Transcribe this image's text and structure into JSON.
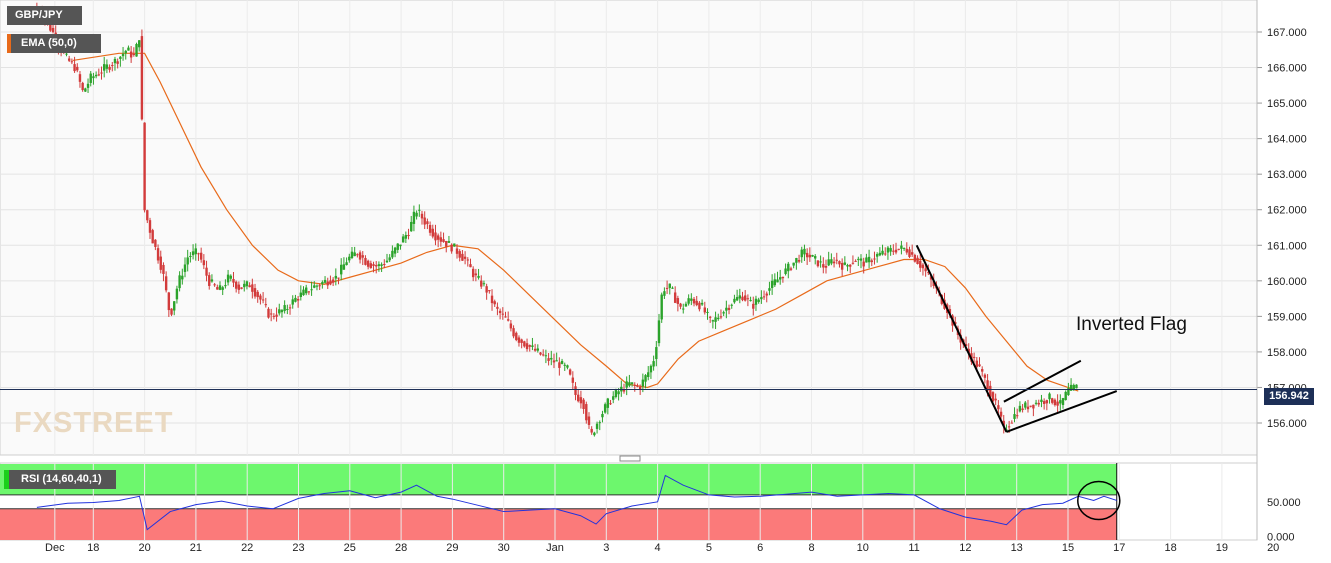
{
  "chart_data": [
    {
      "type": "candlestick",
      "symbol": "GBP/JPY",
      "indicator_label": "EMA (50,0)",
      "annotation": "Inverted Flag",
      "last_price": "156.942",
      "watermark": "FXSTREET",
      "y_ticks": [
        "156.000",
        "157.000",
        "158.000",
        "159.000",
        "160.000",
        "161.000",
        "162.000",
        "163.000",
        "164.000",
        "165.000",
        "166.000",
        "167.000"
      ],
      "ylim": [
        155.1,
        167.9
      ],
      "x_ticks": [
        {
          "label": "Dec",
          "x": 0.25
        },
        {
          "label": "18",
          "x": 1.0
        },
        {
          "label": "20",
          "x": 2.0
        },
        {
          "label": "21",
          "x": 3.0
        },
        {
          "label": "22",
          "x": 4.0
        },
        {
          "label": "23",
          "x": 5.0
        },
        {
          "label": "25",
          "x": 6.0
        },
        {
          "label": "28",
          "x": 7.0
        },
        {
          "label": "29",
          "x": 8.0
        },
        {
          "label": "30",
          "x": 9.0
        },
        {
          "label": "Jan",
          "x": 10.0
        },
        {
          "label": "3",
          "x": 11.0
        },
        {
          "label": "4",
          "x": 12.0
        },
        {
          "label": "5",
          "x": 13.0
        },
        {
          "label": "6",
          "x": 14.0
        },
        {
          "label": "8",
          "x": 15.0
        },
        {
          "label": "10",
          "x": 16.0
        },
        {
          "label": "11",
          "x": 17.0
        },
        {
          "label": "12",
          "x": 18.0
        },
        {
          "label": "13",
          "x": 19.0
        },
        {
          "label": "15",
          "x": 20.0
        },
        {
          "label": "17",
          "x": 21.0
        },
        {
          "label": "18",
          "x": 22.0
        },
        {
          "label": "19",
          "x": 23.0
        },
        {
          "label": "20",
          "x": 24.0
        }
      ],
      "price_path": [
        [
          -0.1,
          167.7
        ],
        [
          0.1,
          167.4
        ],
        [
          0.3,
          166.9
        ],
        [
          0.5,
          166.3
        ],
        [
          0.7,
          166.0
        ],
        [
          0.85,
          165.3
        ],
        [
          1.0,
          165.7
        ],
        [
          1.2,
          165.9
        ],
        [
          1.5,
          166.2
        ],
        [
          1.7,
          166.5
        ],
        [
          1.85,
          166.3
        ],
        [
          1.95,
          166.9
        ],
        [
          2.05,
          162.0
        ],
        [
          2.2,
          161.2
        ],
        [
          2.4,
          160.3
        ],
        [
          2.55,
          159.0
        ],
        [
          2.7,
          159.9
        ],
        [
          2.9,
          160.7
        ],
        [
          3.1,
          160.8
        ],
        [
          3.3,
          160.0
        ],
        [
          3.5,
          159.7
        ],
        [
          3.7,
          160.1
        ],
        [
          3.9,
          159.8
        ],
        [
          4.1,
          159.9
        ],
        [
          4.3,
          159.5
        ],
        [
          4.5,
          159.0
        ],
        [
          4.8,
          159.2
        ],
        [
          5.0,
          159.5
        ],
        [
          5.3,
          159.8
        ],
        [
          5.6,
          160.0
        ],
        [
          5.8,
          160.1
        ],
        [
          6.0,
          160.6
        ],
        [
          6.2,
          160.8
        ],
        [
          6.4,
          160.5
        ],
        [
          6.6,
          160.4
        ],
        [
          6.8,
          160.6
        ],
        [
          7.0,
          161.0
        ],
        [
          7.2,
          161.4
        ],
        [
          7.35,
          162.0
        ],
        [
          7.5,
          161.7
        ],
        [
          7.7,
          161.3
        ],
        [
          7.9,
          161.1
        ],
        [
          8.1,
          160.9
        ],
        [
          8.3,
          160.6
        ],
        [
          8.5,
          160.1
        ],
        [
          8.7,
          159.8
        ],
        [
          8.9,
          159.2
        ],
        [
          9.1,
          158.9
        ],
        [
          9.3,
          158.4
        ],
        [
          9.5,
          158.2
        ],
        [
          9.7,
          158.0
        ],
        [
          9.9,
          157.8
        ],
        [
          10.1,
          157.7
        ],
        [
          10.3,
          157.5
        ],
        [
          10.45,
          156.8
        ],
        [
          10.6,
          156.6
        ],
        [
          10.75,
          155.6
        ],
        [
          10.9,
          156.1
        ],
        [
          11.1,
          156.6
        ],
        [
          11.3,
          156.9
        ],
        [
          11.5,
          157.1
        ],
        [
          11.7,
          157.0
        ],
        [
          11.9,
          157.5
        ],
        [
          12.0,
          157.9
        ],
        [
          12.15,
          159.8
        ],
        [
          12.3,
          159.8
        ],
        [
          12.5,
          159.2
        ],
        [
          12.7,
          159.5
        ],
        [
          12.9,
          159.3
        ],
        [
          13.1,
          158.8
        ],
        [
          13.3,
          159.1
        ],
        [
          13.5,
          159.4
        ],
        [
          13.7,
          159.6
        ],
        [
          13.9,
          159.3
        ],
        [
          14.1,
          159.6
        ],
        [
          14.3,
          159.9
        ],
        [
          14.5,
          160.2
        ],
        [
          14.7,
          160.5
        ],
        [
          14.9,
          160.8
        ],
        [
          15.1,
          160.6
        ],
        [
          15.3,
          160.4
        ],
        [
          15.5,
          160.6
        ],
        [
          15.7,
          160.4
        ],
        [
          15.9,
          160.6
        ],
        [
          16.1,
          160.5
        ],
        [
          16.3,
          160.7
        ],
        [
          16.5,
          160.8
        ],
        [
          16.7,
          160.9
        ],
        [
          16.9,
          160.9
        ],
        [
          17.1,
          160.6
        ],
        [
          17.3,
          160.2
        ],
        [
          17.5,
          159.7
        ],
        [
          17.7,
          159.2
        ],
        [
          17.9,
          158.5
        ],
        [
          18.1,
          158.0
        ],
        [
          18.3,
          157.6
        ],
        [
          18.5,
          157.0
        ],
        [
          18.7,
          156.3
        ],
        [
          18.8,
          155.8
        ],
        [
          18.95,
          156.1
        ],
        [
          19.1,
          156.4
        ],
        [
          19.3,
          156.5
        ],
        [
          19.5,
          156.6
        ],
        [
          19.7,
          156.7
        ],
        [
          19.9,
          156.5
        ],
        [
          20.05,
          156.9
        ],
        [
          20.2,
          157.0
        ]
      ],
      "ema_path": [
        [
          0.6,
          166.2
        ],
        [
          1.5,
          166.4
        ],
        [
          2.0,
          166.4
        ],
        [
          2.3,
          165.6
        ],
        [
          2.7,
          164.4
        ],
        [
          3.1,
          163.2
        ],
        [
          3.6,
          162.0
        ],
        [
          4.1,
          161.0
        ],
        [
          4.6,
          160.3
        ],
        [
          5.0,
          160.0
        ],
        [
          5.5,
          159.9
        ],
        [
          6.0,
          160.1
        ],
        [
          6.5,
          160.3
        ],
        [
          7.0,
          160.5
        ],
        [
          7.5,
          160.8
        ],
        [
          8.0,
          161.0
        ],
        [
          8.5,
          160.9
        ],
        [
          9.0,
          160.3
        ],
        [
          9.5,
          159.6
        ],
        [
          10.0,
          158.9
        ],
        [
          10.5,
          158.2
        ],
        [
          11.0,
          157.6
        ],
        [
          11.4,
          157.1
        ],
        [
          11.8,
          157.0
        ],
        [
          12.0,
          157.1
        ],
        [
          12.4,
          157.8
        ],
        [
          12.8,
          158.3
        ],
        [
          13.3,
          158.6
        ],
        [
          13.8,
          158.9
        ],
        [
          14.3,
          159.2
        ],
        [
          14.8,
          159.6
        ],
        [
          15.3,
          160.0
        ],
        [
          15.8,
          160.2
        ],
        [
          16.3,
          160.4
        ],
        [
          16.8,
          160.6
        ],
        [
          17.2,
          160.6
        ],
        [
          17.6,
          160.4
        ],
        [
          18.0,
          159.8
        ],
        [
          18.4,
          159.0
        ],
        [
          18.8,
          158.3
        ],
        [
          19.2,
          157.6
        ],
        [
          19.6,
          157.2
        ],
        [
          20.0,
          157.0
        ],
        [
          20.2,
          156.9
        ]
      ],
      "flag_lines": [
        {
          "points": [
            [
              17.05,
              161.0
            ],
            [
              18.8,
              155.75
            ]
          ]
        },
        {
          "points": [
            [
              18.8,
              155.75
            ],
            [
              20.95,
              156.9
            ]
          ]
        },
        {
          "points": [
            [
              18.75,
              156.6
            ],
            [
              20.25,
              157.75
            ]
          ]
        }
      ]
    },
    {
      "type": "line",
      "indicator": "RSI (14,60,40,1)",
      "y_ticks": [
        "0.000",
        "50.000"
      ],
      "ylim": [
        -5,
        106
      ],
      "thresholds": [
        60,
        40
      ],
      "rsi_path": [
        [
          -0.1,
          42
        ],
        [
          0.5,
          48
        ],
        [
          1.0,
          49
        ],
        [
          1.5,
          52
        ],
        [
          1.9,
          58
        ],
        [
          2.05,
          10
        ],
        [
          2.5,
          36
        ],
        [
          3.0,
          46
        ],
        [
          3.5,
          51
        ],
        [
          4.0,
          44
        ],
        [
          4.5,
          40
        ],
        [
          5.0,
          55
        ],
        [
          5.5,
          62
        ],
        [
          6.0,
          66
        ],
        [
          6.5,
          56
        ],
        [
          7.0,
          64
        ],
        [
          7.3,
          74
        ],
        [
          7.7,
          58
        ],
        [
          8.0,
          54
        ],
        [
          8.5,
          45
        ],
        [
          9.0,
          36
        ],
        [
          9.5,
          38
        ],
        [
          10.0,
          40
        ],
        [
          10.5,
          30
        ],
        [
          10.8,
          18
        ],
        [
          11.0,
          33
        ],
        [
          11.5,
          44
        ],
        [
          12.0,
          50
        ],
        [
          12.15,
          88
        ],
        [
          12.5,
          74
        ],
        [
          13.0,
          60
        ],
        [
          13.5,
          57
        ],
        [
          14.0,
          58
        ],
        [
          14.5,
          61
        ],
        [
          15.0,
          64
        ],
        [
          15.5,
          58
        ],
        [
          16.0,
          60
        ],
        [
          16.5,
          62
        ],
        [
          17.0,
          60
        ],
        [
          17.5,
          40
        ],
        [
          18.0,
          28
        ],
        [
          18.5,
          22
        ],
        [
          18.8,
          17
        ],
        [
          19.1,
          38
        ],
        [
          19.5,
          46
        ],
        [
          19.9,
          48
        ],
        [
          20.2,
          58
        ],
        [
          20.5,
          52
        ],
        [
          20.7,
          58
        ],
        [
          20.95,
          52
        ]
      ],
      "annotation_circle_x": 20.6
    }
  ]
}
